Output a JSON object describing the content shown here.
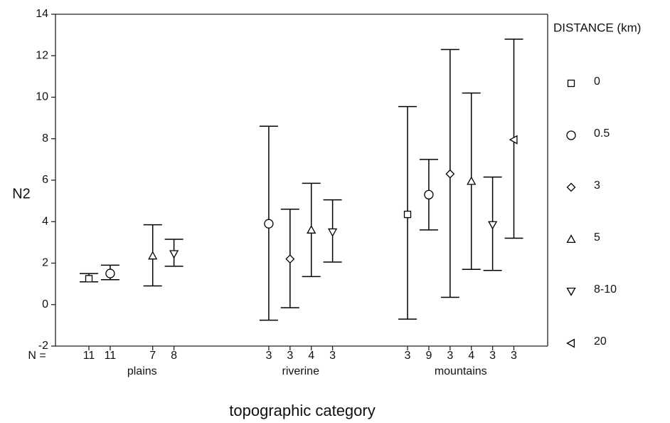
{
  "chart_data": {
    "type": "errorbar",
    "ylabel": "N2",
    "xlabel": "topographic category",
    "categories": [
      "plains",
      "riverine",
      "mountains"
    ],
    "n_label": "N =",
    "legend_title": "DISTANCE (km)",
    "ylim": [
      -2,
      14
    ],
    "yticks": [
      -2,
      0,
      2,
      4,
      6,
      8,
      10,
      12,
      14
    ],
    "color": "#000000",
    "series": [
      {
        "name": "0",
        "marker": "square",
        "values": [
          1.25,
          null,
          4.35
        ],
        "lower": [
          1.1,
          null,
          -0.7
        ],
        "upper": [
          1.5,
          null,
          9.55
        ],
        "n": [
          11,
          null,
          3
        ]
      },
      {
        "name": "0.5",
        "marker": "circle",
        "values": [
          1.5,
          3.9,
          5.3
        ],
        "lower": [
          1.2,
          -0.75,
          3.6
        ],
        "upper": [
          1.9,
          8.6,
          7.0
        ],
        "n": [
          11,
          3,
          9
        ]
      },
      {
        "name": "3",
        "marker": "diamond",
        "values": [
          null,
          2.2,
          6.3
        ],
        "lower": [
          null,
          -0.15,
          0.35
        ],
        "upper": [
          null,
          4.6,
          12.3
        ],
        "n": [
          null,
          3,
          3
        ]
      },
      {
        "name": "5",
        "marker": "triangle-up",
        "values": [
          2.35,
          3.6,
          5.95
        ],
        "lower": [
          0.9,
          1.35,
          1.7
        ],
        "upper": [
          3.85,
          5.85,
          10.2
        ],
        "n": [
          7,
          4,
          4
        ]
      },
      {
        "name": "8-10",
        "marker": "triangle-down",
        "values": [
          2.45,
          3.5,
          3.85
        ],
        "lower": [
          1.85,
          2.05,
          1.65
        ],
        "upper": [
          3.15,
          5.05,
          6.15
        ],
        "n": [
          8,
          3,
          3
        ]
      },
      {
        "name": "20",
        "marker": "triangle-left",
        "values": [
          null,
          null,
          7.95
        ],
        "lower": [
          null,
          null,
          3.2
        ],
        "upper": [
          null,
          null,
          12.8
        ],
        "n": [
          null,
          null,
          3
        ]
      }
    ]
  }
}
